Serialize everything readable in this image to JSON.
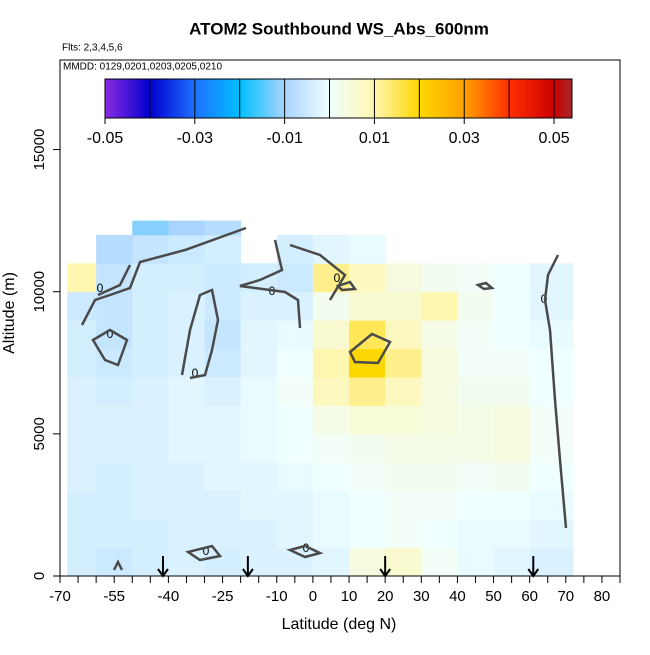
{
  "chart_data": {
    "type": "heatmap",
    "title": "ATOM2 Southbound WS_Abs_600nm",
    "subtitle": "Flts: 2,3,4,5,6",
    "annotation": "MMDD: 0129,0201,0203,0205,0210",
    "xlabel": "Latitude (deg N)",
    "ylabel": "Altitude (m)",
    "xlim": [
      -70,
      85
    ],
    "ylim": [
      0,
      18150
    ],
    "xticks": [
      -70,
      -55,
      -40,
      -25,
      -10,
      0,
      10,
      20,
      30,
      40,
      50,
      60,
      70,
      80
    ],
    "xticks_minor": [
      -65,
      -60,
      -50,
      -45,
      -35,
      -30,
      -20,
      -15,
      -5,
      5,
      15,
      25,
      35,
      45,
      55,
      65,
      75,
      85
    ],
    "yticks": [
      0,
      5000,
      10000,
      15000
    ],
    "x_edges": [
      -68,
      -60,
      -50,
      -40,
      -30,
      -20,
      -10,
      0,
      10,
      20,
      30,
      40,
      50,
      60,
      72
    ],
    "y_edges": [
      0,
      1000,
      2000,
      3000,
      4000,
      5000,
      6000,
      7000,
      8000,
      9000,
      10000,
      11000,
      12000,
      12500
    ],
    "values": [
      [
        -0.004,
        -0.005,
        -0.004,
        -0.003,
        -0.004,
        -0.003,
        -0.003,
        -0.002,
        0.004,
        0.006,
        0.001,
        -0.001,
        -0.002,
        -0.003
      ],
      [
        -0.004,
        -0.004,
        -0.004,
        -0.003,
        -0.003,
        -0.003,
        -0.002,
        -0.001,
        0.0,
        0.001,
        0.0,
        -0.001,
        -0.001,
        -0.002
      ],
      [
        -0.004,
        -0.004,
        -0.003,
        -0.003,
        -0.003,
        -0.002,
        -0.002,
        -0.001,
        0.0,
        0.001,
        0.001,
        0.0,
        0.0,
        -0.001
      ],
      [
        -0.003,
        -0.004,
        -0.003,
        -0.003,
        -0.002,
        -0.002,
        -0.001,
        0.0,
        0.001,
        0.002,
        0.002,
        0.001,
        0.002,
        0.0
      ],
      [
        -0.003,
        -0.003,
        -0.003,
        -0.002,
        -0.002,
        -0.001,
        0.0,
        0.001,
        0.002,
        0.003,
        0.003,
        0.003,
        0.004,
        0.001
      ],
      [
        -0.003,
        -0.003,
        -0.003,
        -0.002,
        -0.002,
        -0.001,
        0.0,
        0.003,
        0.005,
        0.005,
        0.004,
        0.003,
        0.004,
        0.001
      ],
      [
        -0.003,
        -0.004,
        -0.003,
        -0.002,
        -0.003,
        -0.001,
        0.001,
        0.008,
        0.012,
        0.008,
        0.004,
        0.002,
        0.002,
        0.0
      ],
      [
        -0.004,
        -0.005,
        -0.004,
        -0.003,
        -0.005,
        -0.002,
        0.0,
        0.01,
        0.02,
        0.012,
        0.004,
        0.001,
        0.001,
        0.0
      ],
      [
        -0.004,
        -0.006,
        -0.004,
        -0.003,
        -0.006,
        -0.002,
        -0.001,
        0.006,
        0.015,
        0.008,
        0.003,
        0.001,
        0.0,
        -0.001
      ],
      [
        -0.005,
        -0.006,
        -0.004,
        -0.003,
        -0.005,
        -0.003,
        -0.003,
        0.002,
        0.006,
        0.006,
        0.01,
        0.002,
        0.0,
        -0.002
      ],
      [
        0.01,
        -0.006,
        -0.004,
        -0.004,
        -0.005,
        -0.004,
        -0.005,
        0.012,
        0.008,
        0.004,
        0.002,
        0.001,
        0.0,
        -0.002
      ],
      [
        null,
        -0.008,
        -0.006,
        -0.005,
        -0.004,
        null,
        -0.004,
        -0.002,
        -0.001,
        null,
        null,
        null,
        null,
        null
      ],
      [
        null,
        null,
        -0.012,
        -0.01,
        -0.008,
        null,
        null,
        null,
        null,
        null,
        null,
        null,
        null,
        null
      ]
    ],
    "colorbar": {
      "range": [
        -0.05,
        0.054
      ],
      "ticks": [
        -0.05,
        -0.03,
        -0.01,
        0.01,
        0.03,
        0.05
      ],
      "breaks": [
        -0.04,
        -0.03,
        -0.02,
        -0.01,
        0.0,
        0.01,
        0.02,
        0.03,
        0.04,
        0.05
      ],
      "stops": [
        {
          "value": -0.05,
          "color": "#8a2be2"
        },
        {
          "value": -0.04,
          "color": "#0000cd"
        },
        {
          "value": -0.03,
          "color": "#1e70ff"
        },
        {
          "value": -0.02,
          "color": "#00bfff"
        },
        {
          "value": -0.01,
          "color": "#a8d4ff"
        },
        {
          "value": 0.0,
          "color": "#f0ffff"
        },
        {
          "value": 0.01,
          "color": "#fff6b0"
        },
        {
          "value": 0.02,
          "color": "#ffd700"
        },
        {
          "value": 0.03,
          "color": "#ffa000"
        },
        {
          "value": 0.04,
          "color": "#ff3000"
        },
        {
          "value": 0.05,
          "color": "#cc0000"
        },
        {
          "value": 0.054,
          "color": "#a52a2a"
        }
      ]
    },
    "flight_markers": [
      -41.5,
      -18,
      20,
      61
    ],
    "contour_label": "0"
  }
}
